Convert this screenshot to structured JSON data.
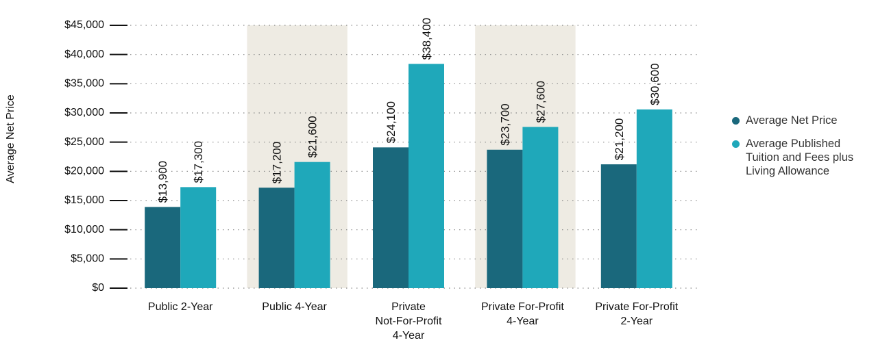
{
  "chart_data": {
    "type": "bar",
    "y_label": "Average Net Price",
    "categories": [
      [
        "Public 2-Year"
      ],
      [
        "Public 4-Year"
      ],
      [
        "Private",
        "Not-For-Profit",
        "4-Year"
      ],
      [
        "Private For-Profit",
        "4-Year"
      ],
      [
        "Private For-Profit",
        "2-Year"
      ]
    ],
    "series": [
      {
        "name": "Average Net Price",
        "color": "#1a687c",
        "values": [
          13900,
          17200,
          24100,
          23700,
          21200
        ],
        "value_labels": [
          "$13,900",
          "$17,200",
          "$24,100",
          "$23,700",
          "$21,200"
        ]
      },
      {
        "name": "Average Published Tuition and Fees plus Living Allowance",
        "color": "#1fa8ba",
        "values": [
          17300,
          21600,
          38400,
          27600,
          30600
        ],
        "value_labels": [
          "$17,300",
          "$21,600",
          "$38,400",
          "$27,600",
          "$30,600"
        ]
      }
    ],
    "ylim": [
      0,
      45000
    ],
    "yticks": [
      {
        "value": 0,
        "label": "$0"
      },
      {
        "value": 5000,
        "label": "$5,000"
      },
      {
        "value": 10000,
        "label": "$10,000"
      },
      {
        "value": 15000,
        "label": "$15,000"
      },
      {
        "value": 20000,
        "label": "$20,000"
      },
      {
        "value": 25000,
        "label": "$25,000"
      },
      {
        "value": 30000,
        "label": "$30,000"
      },
      {
        "value": 35000,
        "label": "$35,000"
      },
      {
        "value": 40000,
        "label": "$40,000"
      },
      {
        "value": 45000,
        "label": "$45,000"
      }
    ],
    "grid": true,
    "legend": "right"
  }
}
